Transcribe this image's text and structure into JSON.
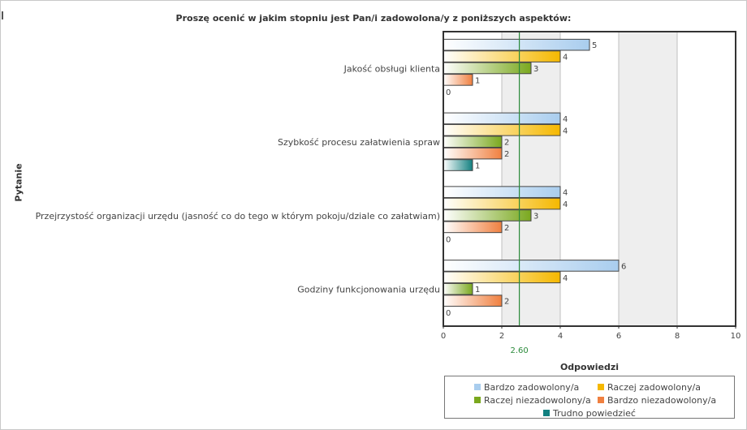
{
  "chart_data": {
    "type": "bar",
    "orientation": "horizontal",
    "title": "Proszę ocenić w jakim stopniu jest Pan/i zadowolona/y z poniższych aspektów:",
    "xlabel": "Odpowiedzi",
    "ylabel": "Pytanie",
    "xlim": [
      0,
      10
    ],
    "xticks": [
      0,
      2,
      4,
      6,
      8,
      10
    ],
    "grid": true,
    "legend_position": "bottom-right",
    "categories": [
      "Jakość obsługi klienta",
      "Szybkość procesu załatwienia spraw",
      "Przejrzystość organizacji urzędu (jasność co do tego w którym pokoju/dziale co załatwiam)",
      "Godziny funkcjonowania urzędu"
    ],
    "series": [
      {
        "name": "Bardzo zadowolony/a",
        "color": "#a9cdee",
        "values": [
          5,
          4,
          4,
          6
        ]
      },
      {
        "name": "Raczej zadowolony/a",
        "color": "#f5b800",
        "values": [
          4,
          4,
          4,
          4
        ]
      },
      {
        "name": "Raczej niezadowolony/a",
        "color": "#7aa81e",
        "values": [
          3,
          2,
          3,
          1
        ]
      },
      {
        "name": "Bardzo niezadowolony/a",
        "color": "#f08040",
        "values": [
          1,
          2,
          2,
          2
        ]
      },
      {
        "name": "Trudno powiedzieć",
        "color": "#128080",
        "values": [
          0,
          1,
          0,
          0
        ]
      }
    ],
    "reference_line": {
      "value": 2.6,
      "label": "2.60",
      "color": "#2a8a3a"
    }
  }
}
